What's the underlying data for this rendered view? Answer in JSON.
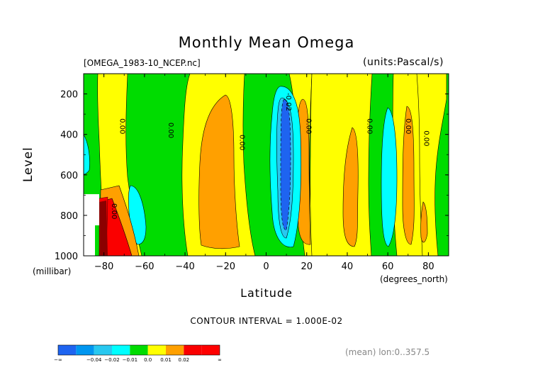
{
  "header": {
    "title": "Monthly Mean Omega",
    "file_label": "[OMEGA_1983-10_NCEP.nc]",
    "units_label": "(units:Pascal/s)"
  },
  "footer": {
    "contour_interval": "CONTOUR INTERVAL = 1.000E-02",
    "mean_info": "(mean) lon:0..357.5"
  },
  "chart_data": {
    "type": "heatmap",
    "title": "Monthly Mean Omega",
    "xlabel": "Latitude",
    "ylabel": "Level",
    "x_unit_label": "(degrees_north)",
    "y_unit_label": "(millibar)",
    "xlim": [
      -90,
      90
    ],
    "ylim": [
      1000,
      100
    ],
    "x_ticks": [
      -80,
      -60,
      -40,
      -20,
      0,
      20,
      40,
      60,
      80
    ],
    "y_ticks": [
      200,
      400,
      600,
      800,
      1000
    ],
    "contour_labels": [
      {
        "text": "0.00",
        "lat": -72,
        "level": 360
      },
      {
        "text": "0.00",
        "lat": -48,
        "level": 380
      },
      {
        "text": "0.00",
        "lat": -13,
        "level": 440
      },
      {
        "text": "-0.02",
        "lat": 10,
        "level": 240
      },
      {
        "text": "0.00",
        "lat": 20,
        "level": 360
      },
      {
        "text": "0.00",
        "lat": 50,
        "level": 360
      },
      {
        "text": "0.00",
        "lat": 69,
        "level": 360
      },
      {
        "text": "0.00",
        "lat": 78,
        "level": 420
      },
      {
        "text": "0.00",
        "lat": -76,
        "level": 780
      }
    ],
    "colorbar": {
      "levels": [
        "-∞",
        "-0.04",
        "-0.02",
        "-0.01",
        "0.0",
        "0.01",
        "0.02",
        "∞"
      ],
      "colors": [
        "#1e64f0",
        "#0096f0",
        "#28c8f0",
        "#00ffff",
        "#00dc00",
        "#ffff00",
        "#ffa000",
        "#fa0000",
        "#ff0000"
      ]
    },
    "regions": [
      {
        "fill": "#00dc00",
        "desc": "background near zero"
      }
    ]
  }
}
